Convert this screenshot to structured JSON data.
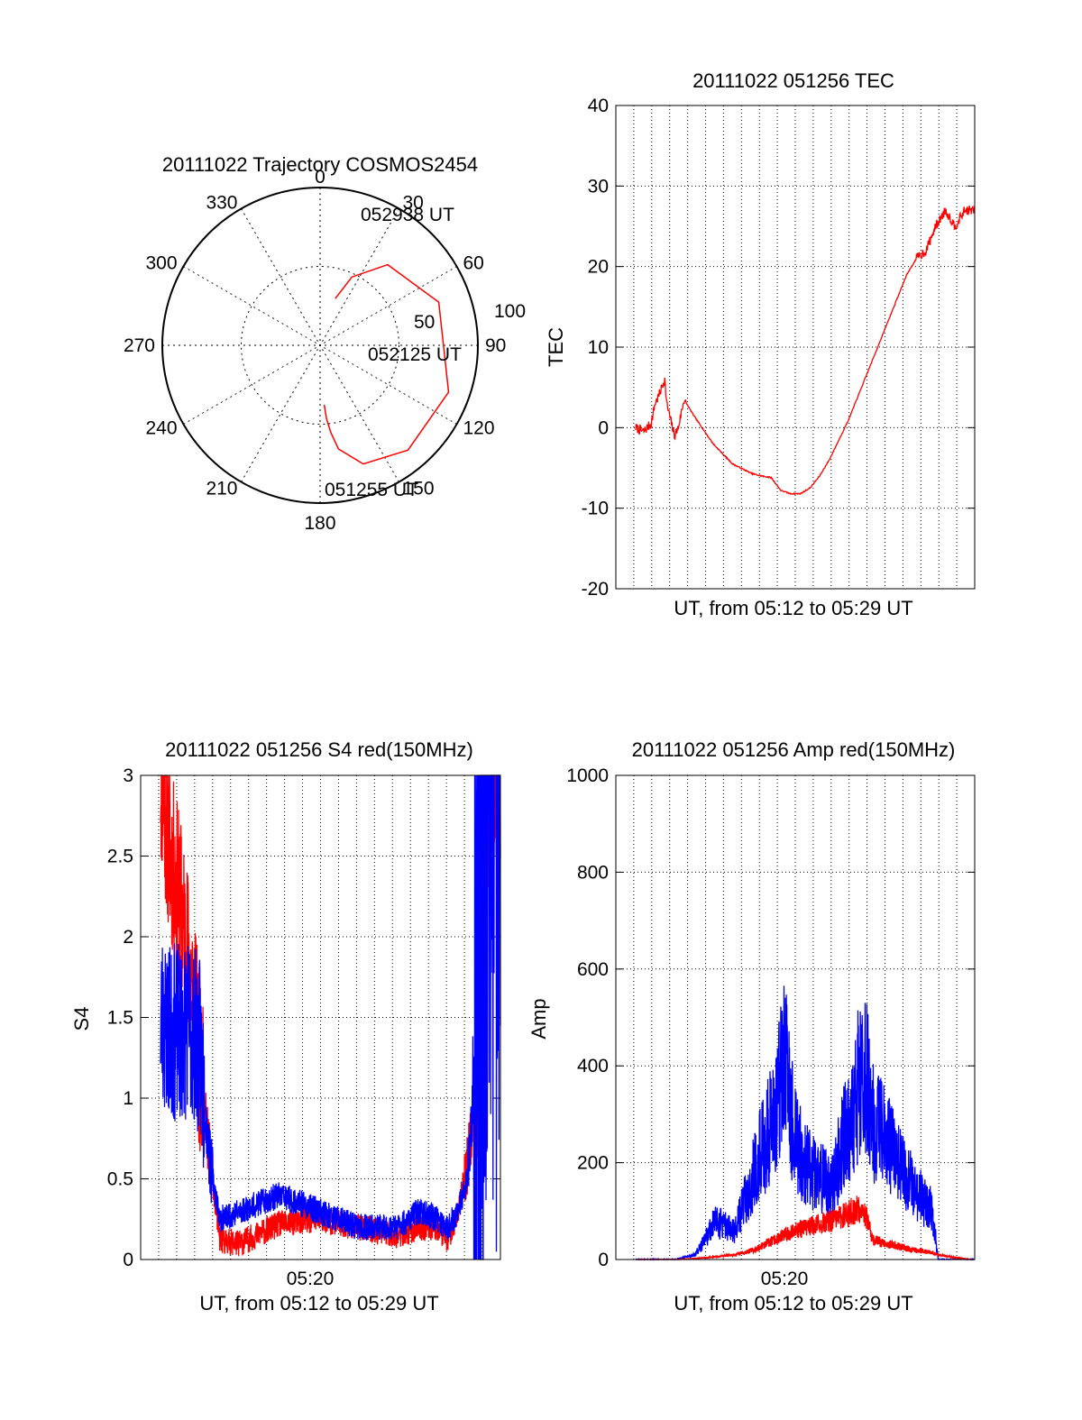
{
  "colors": {
    "red": "#ff0000",
    "blue": "#0000ff",
    "axis": "#000000",
    "grid": "#000000"
  },
  "chart_data": [
    {
      "type": "polar",
      "title": "20111022 Trajectory COSMOS2454",
      "angle_labels": [
        "0",
        "30",
        "60",
        "90",
        "120",
        "150",
        "180",
        "210",
        "240",
        "270",
        "300",
        "330"
      ],
      "radial_labels": [
        "50",
        "100"
      ],
      "trajectory": {
        "color": "red",
        "points_az_el": [
          [
            18,
            62
          ],
          [
            25,
            47
          ],
          [
            40,
            30
          ],
          [
            70,
            18
          ],
          [
            110,
            12
          ],
          [
            140,
            12
          ],
          [
            160,
            18
          ],
          [
            170,
            30
          ],
          [
            173,
            40
          ],
          [
            175,
            48
          ],
          [
            176,
            56
          ]
        ],
        "time_labels": [
          "052938 UT",
          "052125 UT",
          "051255 UT"
        ]
      }
    },
    {
      "type": "line",
      "title": "20111022 051256 TEC",
      "ylabel": "TEC",
      "xlabel": "UT, from 05:12 to 05:29 UT",
      "ylim": [
        -20,
        40
      ],
      "yticks": [
        "-20",
        "-10",
        "0",
        "10",
        "20",
        "30",
        "40"
      ],
      "grid": true,
      "series": [
        {
          "color": "red",
          "x": [
            0,
            0.4,
            0.8,
            1.0,
            1.2,
            1.5,
            1.6,
            1.8,
            2.0,
            2.2,
            2.5,
            3,
            4,
            5,
            6,
            6.5,
            7,
            7.5,
            8,
            8.5,
            9,
            9.5,
            10,
            11,
            12,
            13,
            14,
            14.5,
            15,
            15.5,
            16,
            16.5,
            17
          ],
          "y": [
            0,
            -0.5,
            0.5,
            3,
            4,
            6,
            3,
            1,
            -1,
            0,
            3.5,
            1.5,
            -2,
            -4.5,
            -5.7,
            -6,
            -6.2,
            -7.8,
            -8.2,
            -8.2,
            -7.5,
            -6,
            -4,
            1,
            7,
            13,
            19,
            21,
            22,
            25,
            27,
            25,
            27
          ]
        }
      ]
    },
    {
      "type": "line",
      "title": "20111022 051256 S4 red(150MHz)",
      "ylabel": "S4",
      "xlabel": "UT, from 05:12 to 05:29 UT",
      "xtick_labels": [
        "05:20"
      ],
      "ylim": [
        0,
        3
      ],
      "yticks": [
        "0",
        "0.5",
        "1",
        "1.5",
        "2",
        "2.5",
        "3"
      ],
      "grid": true,
      "series": [
        {
          "color": "red",
          "x": [
            0,
            0.5,
            1,
            1.5,
            2,
            2.5,
            3,
            4,
            6,
            8,
            10,
            12,
            13,
            14,
            14.5,
            15,
            15.5,
            16,
            16.5,
            17
          ],
          "y": [
            3,
            2.5,
            2.2,
            1.8,
            1.2,
            0.6,
            0.12,
            0.1,
            0.22,
            0.25,
            0.2,
            0.15,
            0.2,
            0.2,
            0.12,
            0.3,
            0.6,
            1.2,
            2.4,
            3
          ]
        },
        {
          "color": "blue",
          "x": [
            0,
            0.5,
            1,
            1.5,
            2,
            2.5,
            3,
            4,
            6,
            8,
            10,
            12,
            13,
            14,
            14.5,
            15,
            15.5,
            16,
            16.5,
            17
          ],
          "y": [
            1.5,
            1.4,
            1.4,
            1.45,
            1.3,
            0.6,
            0.25,
            0.3,
            0.4,
            0.3,
            0.2,
            0.2,
            0.3,
            0.25,
            0.2,
            0.3,
            0.5,
            1.5,
            3,
            3
          ]
        }
      ]
    },
    {
      "type": "line",
      "title": "20111022 051256 Amp red(150MHz)",
      "ylabel": "Amp",
      "xlabel": "UT, from 05:12 to 05:29 UT",
      "xtick_labels": [
        "05:20"
      ],
      "ylim": [
        0,
        1000
      ],
      "yticks": [
        "0",
        "200",
        "400",
        "600",
        "800",
        "1000"
      ],
      "grid": true,
      "series": [
        {
          "color": "red",
          "x": [
            0,
            2,
            3,
            4,
            5,
            6,
            7,
            8,
            9,
            10,
            11,
            11.5,
            12,
            13,
            14,
            15,
            15.3,
            16,
            17
          ],
          "y": [
            0,
            0,
            2,
            5,
            10,
            20,
            40,
            60,
            70,
            80,
            100,
            110,
            40,
            30,
            20,
            15,
            10,
            5,
            0
          ]
        },
        {
          "color": "blue",
          "x": [
            0,
            2,
            3,
            3.5,
            4,
            5,
            6,
            7,
            7.5,
            8,
            8.5,
            9,
            10,
            10.5,
            11,
            11.5,
            12,
            12.5,
            13,
            14,
            15,
            15.3,
            16,
            17
          ],
          "y": [
            0,
            0,
            10,
            40,
            80,
            60,
            180,
            300,
            420,
            260,
            200,
            180,
            150,
            260,
            300,
            420,
            280,
            260,
            220,
            150,
            100,
            0,
            0,
            0
          ]
        }
      ]
    }
  ]
}
